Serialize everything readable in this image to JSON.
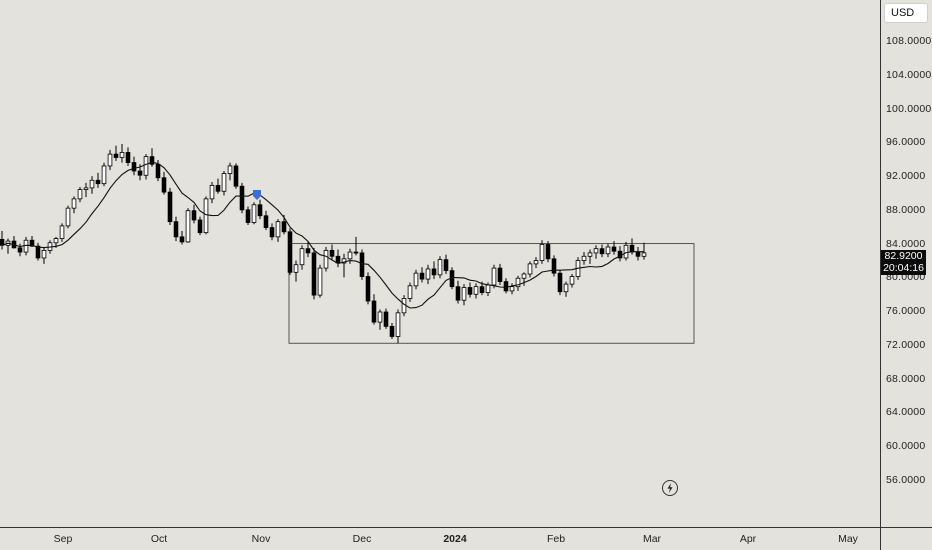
{
  "currency": "USD",
  "last_price": "82.9200",
  "countdown": "20:04:16",
  "chart_data": {
    "type": "candlestick",
    "y_axis": {
      "ticks": [
        "108.0000",
        "104.0000",
        "100.0000",
        "96.0000",
        "92.0000",
        "88.0000",
        "84.0000",
        "80.0000",
        "76.0000",
        "72.0000",
        "68.0000",
        "64.0000",
        "60.0000",
        "56.0000"
      ],
      "ylim": [
        52,
        110
      ]
    },
    "x_axis": {
      "ticks": [
        {
          "label": "Sep",
          "bold": false
        },
        {
          "label": "Oct",
          "bold": false
        },
        {
          "label": "Nov",
          "bold": false
        },
        {
          "label": "Dec",
          "bold": false
        },
        {
          "label": "2024",
          "bold": true
        },
        {
          "label": "Feb",
          "bold": false
        },
        {
          "label": "Mar",
          "bold": false
        },
        {
          "label": "Apr",
          "bold": false
        },
        {
          "label": "May",
          "bold": false
        }
      ]
    },
    "range_box": {
      "price_high": 84.0,
      "price_low": 72.2,
      "from": "Nov 6",
      "to": "Mar 11"
    },
    "moving_average": {
      "color": "#111111"
    },
    "marker": {
      "at": "Oct 31",
      "color": "#3b6fd6"
    },
    "candle_colors": {
      "up": "#ffffff",
      "down": "#000000",
      "wick": "#000000"
    },
    "candles_ohlc": [
      [
        84.5,
        85.5,
        83.3,
        83.8
      ],
      [
        83.8,
        84.6,
        82.8,
        84.3
      ],
      [
        84.3,
        84.9,
        83.4,
        83.5
      ],
      [
        83.5,
        84.0,
        82.5,
        83.0
      ],
      [
        83.0,
        84.8,
        82.6,
        84.4
      ],
      [
        84.4,
        84.9,
        83.6,
        83.7
      ],
      [
        83.7,
        84.1,
        82.0,
        82.3
      ],
      [
        82.3,
        83.5,
        81.6,
        83.2
      ],
      [
        83.2,
        84.4,
        82.8,
        84.1
      ],
      [
        84.1,
        84.8,
        83.5,
        84.6
      ],
      [
        84.6,
        86.4,
        84.2,
        86.1
      ],
      [
        86.1,
        88.5,
        85.8,
        88.2
      ],
      [
        88.2,
        89.6,
        87.6,
        89.3
      ],
      [
        89.3,
        90.7,
        88.9,
        90.4
      ],
      [
        90.4,
        91.2,
        89.5,
        90.6
      ],
      [
        90.6,
        92.0,
        89.9,
        91.5
      ],
      [
        91.5,
        92.4,
        90.6,
        91.1
      ],
      [
        91.1,
        93.6,
        90.8,
        93.2
      ],
      [
        93.2,
        95.1,
        92.7,
        94.6
      ],
      [
        94.6,
        95.6,
        93.8,
        94.2
      ],
      [
        94.2,
        95.8,
        93.6,
        94.8
      ],
      [
        94.8,
        95.4,
        93.2,
        93.6
      ],
      [
        93.6,
        94.3,
        92.1,
        92.6
      ],
      [
        92.6,
        93.4,
        91.5,
        92.1
      ],
      [
        92.1,
        94.6,
        91.6,
        94.3
      ],
      [
        94.3,
        95.3,
        93.1,
        93.4
      ],
      [
        93.4,
        93.9,
        91.4,
        91.8
      ],
      [
        91.8,
        92.5,
        89.8,
        90.1
      ],
      [
        90.1,
        90.6,
        86.2,
        86.6
      ],
      [
        86.6,
        87.2,
        84.3,
        84.8
      ],
      [
        84.8,
        85.5,
        83.9,
        84.2
      ],
      [
        84.2,
        88.2,
        84.1,
        87.9
      ],
      [
        87.9,
        88.6,
        86.4,
        86.8
      ],
      [
        86.8,
        87.2,
        85.0,
        85.3
      ],
      [
        85.3,
        89.6,
        85.1,
        89.3
      ],
      [
        89.3,
        91.3,
        88.8,
        90.9
      ],
      [
        90.9,
        91.7,
        89.9,
        90.2
      ],
      [
        90.2,
        92.6,
        89.7,
        92.3
      ],
      [
        92.3,
        93.6,
        91.5,
        93.2
      ],
      [
        93.2,
        93.5,
        90.5,
        90.8
      ],
      [
        90.8,
        91.2,
        87.6,
        88.0
      ],
      [
        88.0,
        88.4,
        86.2,
        86.5
      ],
      [
        86.5,
        88.9,
        86.3,
        88.6
      ],
      [
        88.6,
        89.2,
        86.9,
        87.3
      ],
      [
        87.3,
        87.9,
        85.6,
        85.9
      ],
      [
        85.9,
        86.4,
        84.4,
        84.8
      ],
      [
        84.8,
        86.9,
        84.2,
        86.6
      ],
      [
        86.6,
        87.4,
        85.1,
        85.4
      ],
      [
        85.4,
        85.8,
        80.3,
        80.6
      ],
      [
        80.6,
        82.0,
        79.5,
        81.5
      ],
      [
        81.5,
        83.8,
        80.9,
        83.4
      ],
      [
        83.4,
        84.2,
        82.4,
        82.9
      ],
      [
        82.9,
        83.5,
        77.4,
        77.9
      ],
      [
        77.9,
        81.5,
        77.6,
        81.1
      ],
      [
        81.1,
        83.6,
        80.7,
        83.2
      ],
      [
        83.2,
        83.9,
        82.1,
        82.5
      ],
      [
        82.5,
        83.3,
        81.2,
        81.7
      ],
      [
        81.7,
        82.8,
        80.0,
        82.2
      ],
      [
        82.2,
        83.4,
        81.6,
        83.0
      ],
      [
        83.0,
        84.8,
        82.6,
        82.9
      ],
      [
        82.9,
        83.3,
        79.7,
        80.1
      ],
      [
        80.1,
        80.6,
        76.8,
        77.2
      ],
      [
        77.2,
        78.0,
        74.4,
        74.7
      ],
      [
        74.7,
        76.2,
        73.8,
        75.9
      ],
      [
        75.9,
        76.3,
        73.9,
        74.2
      ],
      [
        74.2,
        74.6,
        72.7,
        73.0
      ],
      [
        73.0,
        76.2,
        72.2,
        75.8
      ],
      [
        75.8,
        77.9,
        75.4,
        77.5
      ],
      [
        77.5,
        79.4,
        77.1,
        79.0
      ],
      [
        79.0,
        80.9,
        78.6,
        80.5
      ],
      [
        80.5,
        81.2,
        79.4,
        79.8
      ],
      [
        79.8,
        81.5,
        79.2,
        81.0
      ],
      [
        81.0,
        81.9,
        79.8,
        80.3
      ],
      [
        80.3,
        82.5,
        79.9,
        82.1
      ],
      [
        82.1,
        82.7,
        80.4,
        80.8
      ],
      [
        80.8,
        81.2,
        78.6,
        78.9
      ],
      [
        78.9,
        79.6,
        76.9,
        77.3
      ],
      [
        77.3,
        79.2,
        76.7,
        78.8
      ],
      [
        78.8,
        79.4,
        77.6,
        78.0
      ],
      [
        78.0,
        79.3,
        77.5,
        78.9
      ],
      [
        78.9,
        79.5,
        77.9,
        78.2
      ],
      [
        78.2,
        79.4,
        77.8,
        79.1
      ],
      [
        79.1,
        81.5,
        78.7,
        81.1
      ],
      [
        81.1,
        81.6,
        79.1,
        79.5
      ],
      [
        79.5,
        79.9,
        78.1,
        78.4
      ],
      [
        78.4,
        79.3,
        78.0,
        78.9
      ],
      [
        78.9,
        80.2,
        78.4,
        79.9
      ],
      [
        79.9,
        80.6,
        79.0,
        80.4
      ],
      [
        80.4,
        81.9,
        80.0,
        81.6
      ],
      [
        81.6,
        82.4,
        81.1,
        82.0
      ],
      [
        82.0,
        84.4,
        81.6,
        83.9
      ],
      [
        83.9,
        84.3,
        81.8,
        82.2
      ],
      [
        82.2,
        82.6,
        80.1,
        80.5
      ],
      [
        80.5,
        80.9,
        77.9,
        78.3
      ],
      [
        78.3,
        79.5,
        77.7,
        79.2
      ],
      [
        79.2,
        80.4,
        78.8,
        80.1
      ],
      [
        80.1,
        82.4,
        79.7,
        82.0
      ],
      [
        82.0,
        83.0,
        81.5,
        82.5
      ],
      [
        82.5,
        83.3,
        81.6,
        82.9
      ],
      [
        82.9,
        83.8,
        82.2,
        83.4
      ],
      [
        83.4,
        83.9,
        82.4,
        82.8
      ],
      [
        82.8,
        84.0,
        82.4,
        83.6
      ],
      [
        83.6,
        84.3,
        82.7,
        83.1
      ],
      [
        83.1,
        83.7,
        81.9,
        82.3
      ],
      [
        82.3,
        84.2,
        82.0,
        83.8
      ],
      [
        83.8,
        84.6,
        82.7,
        83.0
      ],
      [
        83.0,
        83.6,
        82.0,
        82.5
      ],
      [
        82.5,
        84.1,
        82.1,
        82.9
      ]
    ]
  }
}
